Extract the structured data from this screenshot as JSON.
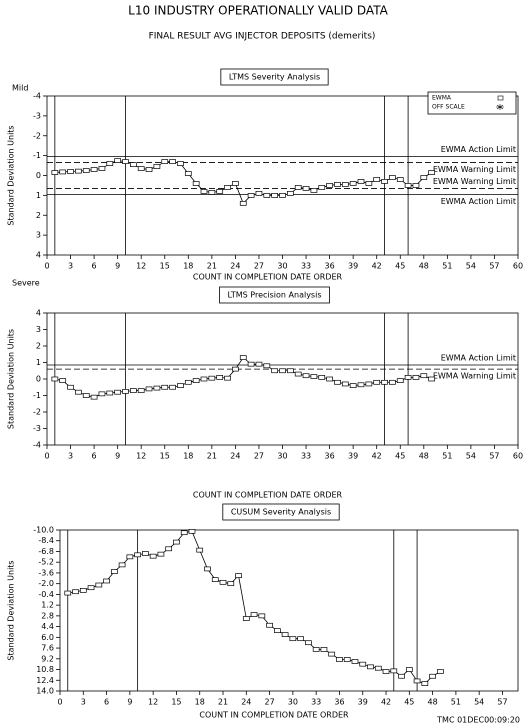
{
  "header": {
    "title": "L10   INDUSTRY OPERATIONALLY VALID DATA",
    "subtitle": "FINAL RESULT AVG INJECTOR DEPOSITS (demerits)",
    "footer": "TMC  01DEC00:09:20"
  },
  "chart_data": [
    {
      "type": "line",
      "title": "LTMS Severity Analysis",
      "y_label": "Standard Deviation Units",
      "x_label": "COUNT IN COMPLETION DATE ORDER",
      "top_note": "Mild",
      "bottom_note": "Severe",
      "legend": "top-right",
      "legend_entries": [
        {
          "label": "EWMA",
          "marker": "square"
        },
        {
          "label": "OFF SCALE",
          "marker": "star"
        }
      ],
      "x": [
        1,
        2,
        3,
        4,
        5,
        6,
        7,
        8,
        9,
        10,
        11,
        12,
        13,
        14,
        15,
        16,
        17,
        18,
        19,
        20,
        21,
        22,
        23,
        24,
        25,
        26,
        27,
        28,
        29,
        30,
        31,
        32,
        33,
        34,
        35,
        36,
        37,
        38,
        39,
        40,
        41,
        42,
        43,
        44,
        45,
        46,
        47,
        48,
        49
      ],
      "series": [
        {
          "color": "#000000",
          "values": [
            -0.15,
            -0.18,
            -0.2,
            -0.22,
            -0.25,
            -0.3,
            -0.35,
            -0.6,
            -0.75,
            -0.7,
            -0.55,
            -0.35,
            -0.3,
            -0.45,
            -0.7,
            -0.7,
            -0.6,
            -0.1,
            0.4,
            0.8,
            0.85,
            0.8,
            0.6,
            0.4,
            1.4,
            1.0,
            0.9,
            1.0,
            1.0,
            1.0,
            0.9,
            0.6,
            0.65,
            0.75,
            0.6,
            0.5,
            0.45,
            0.45,
            0.4,
            0.3,
            0.4,
            0.2,
            0.3,
            0.1,
            0.2,
            0.5,
            0.5,
            0.1,
            -0.15
          ]
        }
      ],
      "limits": [
        {
          "label": "EWMA Action Limit",
          "value": -0.95,
          "style": "solid"
        },
        {
          "label": "EWMA Warning Limit",
          "value": -0.65,
          "style": "dashed"
        },
        {
          "label": "EWMA Warning Limit",
          "value": 0.65,
          "style": "dashed"
        },
        {
          "label": "EWMA Action Limit",
          "value": 0.95,
          "style": "solid"
        }
      ],
      "reference_x": [
        1,
        10,
        43,
        46
      ],
      "xlim": [
        0,
        60
      ],
      "xticks": [
        0,
        3,
        6,
        9,
        12,
        15,
        18,
        21,
        24,
        27,
        30,
        33,
        36,
        39,
        42,
        45,
        48,
        51,
        54,
        57,
        60
      ],
      "ylim": [
        -4,
        4
      ],
      "y_inverted": true,
      "yticks": [
        -4,
        -3,
        -2,
        -1,
        0,
        1,
        2,
        3,
        4
      ]
    },
    {
      "type": "line",
      "title": "LTMS Precision Analysis",
      "y_label": "Standard Deviation Units",
      "x_label": "COUNT IN COMPLETION DATE ORDER",
      "x": [
        1,
        2,
        3,
        4,
        5,
        6,
        7,
        8,
        9,
        10,
        11,
        12,
        13,
        14,
        15,
        16,
        17,
        18,
        19,
        20,
        21,
        22,
        23,
        24,
        25,
        26,
        27,
        28,
        29,
        30,
        31,
        32,
        33,
        34,
        35,
        36,
        37,
        38,
        39,
        40,
        41,
        42,
        43,
        44,
        45,
        46,
        47,
        48,
        49
      ],
      "series": [
        {
          "color": "#000000",
          "values": [
            0,
            -0.1,
            -0.5,
            -0.8,
            -1.0,
            -1.1,
            -0.9,
            -0.85,
            -0.8,
            -0.75,
            -0.7,
            -0.7,
            -0.6,
            -0.55,
            -0.5,
            -0.5,
            -0.4,
            -0.2,
            -0.1,
            0,
            0.05,
            0.1,
            0.05,
            0.6,
            1.3,
            0.9,
            0.9,
            0.8,
            0.5,
            0.5,
            0.5,
            0.3,
            0.2,
            0.15,
            0.1,
            0,
            -0.2,
            -0.3,
            -0.4,
            -0.35,
            -0.3,
            -0.2,
            -0.2,
            -0.2,
            -0.1,
            0.1,
            0.1,
            0.2,
            0
          ]
        }
      ],
      "limits": [
        {
          "label": "EWMA Action Limit",
          "value": 0.85,
          "style": "solid"
        },
        {
          "label": "EWMA Warning Limit",
          "value": 0.6,
          "style": "dashed"
        }
      ],
      "reference_x": [
        1,
        10,
        43,
        46
      ],
      "xlim": [
        0,
        60
      ],
      "xticks": [
        0,
        3,
        6,
        9,
        12,
        15,
        18,
        21,
        24,
        27,
        30,
        33,
        36,
        39,
        42,
        45,
        48,
        51,
        54,
        57,
        60
      ],
      "ylim": [
        -4,
        4
      ],
      "y_inverted": false,
      "yticks": [
        -4,
        -3,
        -2,
        -1,
        0,
        1,
        2,
        3,
        4
      ]
    },
    {
      "type": "line",
      "title": "CUSUM Severity Analysis",
      "y_label": "Standard Deviation Units",
      "x_label": "COUNT IN COMPLETION DATE ORDER",
      "x": [
        1,
        2,
        3,
        4,
        5,
        6,
        7,
        8,
        9,
        10,
        11,
        12,
        13,
        14,
        15,
        16,
        17,
        18,
        19,
        20,
        21,
        22,
        23,
        24,
        25,
        26,
        27,
        28,
        29,
        30,
        31,
        32,
        33,
        34,
        35,
        36,
        37,
        38,
        39,
        40,
        41,
        42,
        43,
        44,
        45,
        46,
        47,
        48,
        49
      ],
      "series": [
        {
          "color": "#000000",
          "values": [
            -0.6,
            -0.8,
            -1.0,
            -1.4,
            -1.8,
            -2.4,
            -3.8,
            -4.8,
            -6.0,
            -6.3,
            -6.5,
            -6.1,
            -6.4,
            -7.2,
            -8.2,
            -9.6,
            -9.8,
            -7.0,
            -4.2,
            -2.6,
            -2.2,
            -2.0,
            -3.2,
            3.2,
            2.6,
            2.8,
            4.2,
            5.0,
            5.6,
            6.2,
            6.2,
            6.8,
            7.8,
            7.8,
            8.5,
            9.3,
            9.3,
            9.6,
            10.0,
            10.4,
            10.6,
            11.1,
            11.0,
            11.8,
            10.8,
            12.5,
            12.9,
            11.8,
            11.1
          ]
        }
      ],
      "limits": [],
      "reference_x": [
        1,
        10,
        43,
        46
      ],
      "xlim": [
        0,
        59
      ],
      "xticks": [
        0,
        3,
        6,
        9,
        12,
        15,
        18,
        21,
        24,
        27,
        30,
        33,
        36,
        39,
        42,
        45,
        48,
        51,
        54,
        57
      ],
      "ylim": [
        -10,
        14
      ],
      "y_inverted": true,
      "yticks": [
        {
          "value": -10,
          "label": "-10.0"
        },
        -8.4,
        -6.8,
        -5.2,
        -3.6,
        {
          "value": -2,
          "label": "-2.0"
        },
        -0.4,
        1.2,
        2.8,
        4.4,
        {
          "value": 6,
          "label": "6.0"
        },
        7.6,
        9.2,
        10.8,
        12.4,
        {
          "value": 14,
          "label": "14.0"
        }
      ]
    }
  ]
}
